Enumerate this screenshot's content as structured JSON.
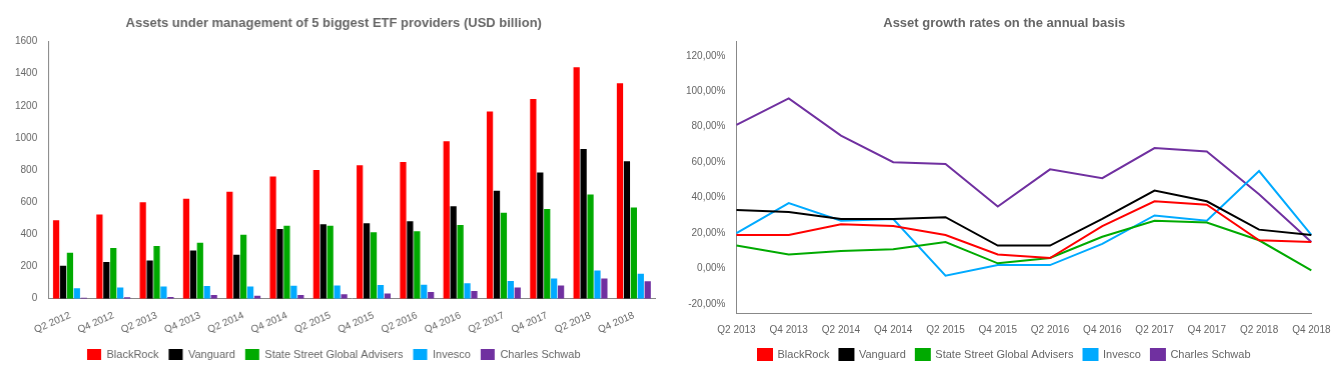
{
  "chart_data": [
    {
      "type": "bar",
      "title": "Assets under management of 5 biggest ETF providers (USD billion)",
      "categories": [
        "Q2 2012",
        "Q4 2012",
        "Q2 2013",
        "Q4 2013",
        "Q2 2014",
        "Q4 2014",
        "Q2 2015",
        "Q4 2015",
        "Q2 2016",
        "Q4 2016",
        "Q2 2017",
        "Q4 2017",
        "Q2 2018",
        "Q4 2018"
      ],
      "series": [
        {
          "name": "BlackRock",
          "color": "#FF0000",
          "values": [
            488,
            523,
            600,
            622,
            666,
            760,
            800,
            830,
            850,
            980,
            1165,
            1243,
            1440,
            1340
          ]
        },
        {
          "name": "Vanguard",
          "color": "#000000",
          "values": [
            205,
            228,
            238,
            300,
            273,
            434,
            463,
            470,
            482,
            575,
            672,
            785,
            932,
            855
          ]
        },
        {
          "name": "State Street Global Advisers",
          "color": "#00AA00",
          "values": [
            285,
            315,
            328,
            348,
            398,
            453,
            453,
            413,
            420,
            458,
            535,
            558,
            648,
            567
          ]
        },
        {
          "name": "Invesco",
          "color": "#00AAFF",
          "values": [
            65,
            70,
            75,
            78,
            75,
            80,
            82,
            85,
            87,
            95,
            110,
            125,
            175,
            155
          ]
        },
        {
          "name": "Charles Schwab",
          "color": "#7030A0",
          "values": [
            5,
            8,
            10,
            22,
            18,
            22,
            28,
            32,
            42,
            48,
            70,
            82,
            125,
            108
          ]
        }
      ],
      "ylim": [
        0,
        1600
      ],
      "yticks": [
        0,
        200,
        400,
        600,
        800,
        1000,
        1200,
        1400,
        1600
      ],
      "grid": false,
      "legend": "bottom"
    },
    {
      "type": "line",
      "title": "Asset growth rates on the annual basis",
      "categories": [
        "Q2 2013",
        "Q4 2013",
        "Q2 2014",
        "Q4 2014",
        "Q2 2015",
        "Q4 2015",
        "Q2 2016",
        "Q4 2016",
        "Q2 2017",
        "Q4 2017",
        "Q2 2018",
        "Q4 2018"
      ],
      "series": [
        {
          "name": "BlackRock",
          "color": "#FF0000",
          "values": [
            0.19,
            0.19,
            0.25,
            0.24,
            0.19,
            0.08,
            0.06,
            0.24,
            0.38,
            0.36,
            0.16,
            0.15
          ]
        },
        {
          "name": "Vanguard",
          "color": "#000000",
          "values": [
            0.33,
            0.32,
            0.28,
            0.28,
            0.29,
            0.13,
            0.13,
            0.28,
            0.44,
            0.38,
            0.22,
            0.19
          ]
        },
        {
          "name": "State Street Global Advisers",
          "color": "#00AA00",
          "values": [
            0.13,
            0.08,
            0.1,
            0.11,
            0.15,
            0.03,
            0.06,
            0.18,
            0.27,
            0.26,
            0.16,
            -0.01
          ]
        },
        {
          "name": "Invesco",
          "color": "#00AAFF",
          "values": [
            0.2,
            0.37,
            0.27,
            0.28,
            -0.04,
            0.02,
            0.02,
            0.14,
            0.3,
            0.27,
            0.55,
            0.19
          ]
        },
        {
          "name": "Charles Schwab",
          "color": "#7030A0",
          "values": [
            0.81,
            0.96,
            0.75,
            0.6,
            0.59,
            0.35,
            0.56,
            0.51,
            0.68,
            0.66,
            0.42,
            0.15
          ]
        }
      ],
      "ylim": [
        -0.25,
        1.28
      ],
      "yticks": [
        {
          "value": -0.2,
          "label": "-20,00%"
        },
        {
          "value": 0.0,
          "label": "0,00%"
        },
        {
          "value": 0.2,
          "label": "20,00%"
        },
        {
          "value": 0.4,
          "label": "40,00%"
        },
        {
          "value": 0.6,
          "label": "60,00%"
        },
        {
          "value": 0.8,
          "label": "80,00%"
        },
        {
          "value": 1.0,
          "label": "100,00%"
        },
        {
          "value": 1.2,
          "label": "120,00%"
        }
      ],
      "grid": false,
      "legend": "bottom"
    }
  ]
}
